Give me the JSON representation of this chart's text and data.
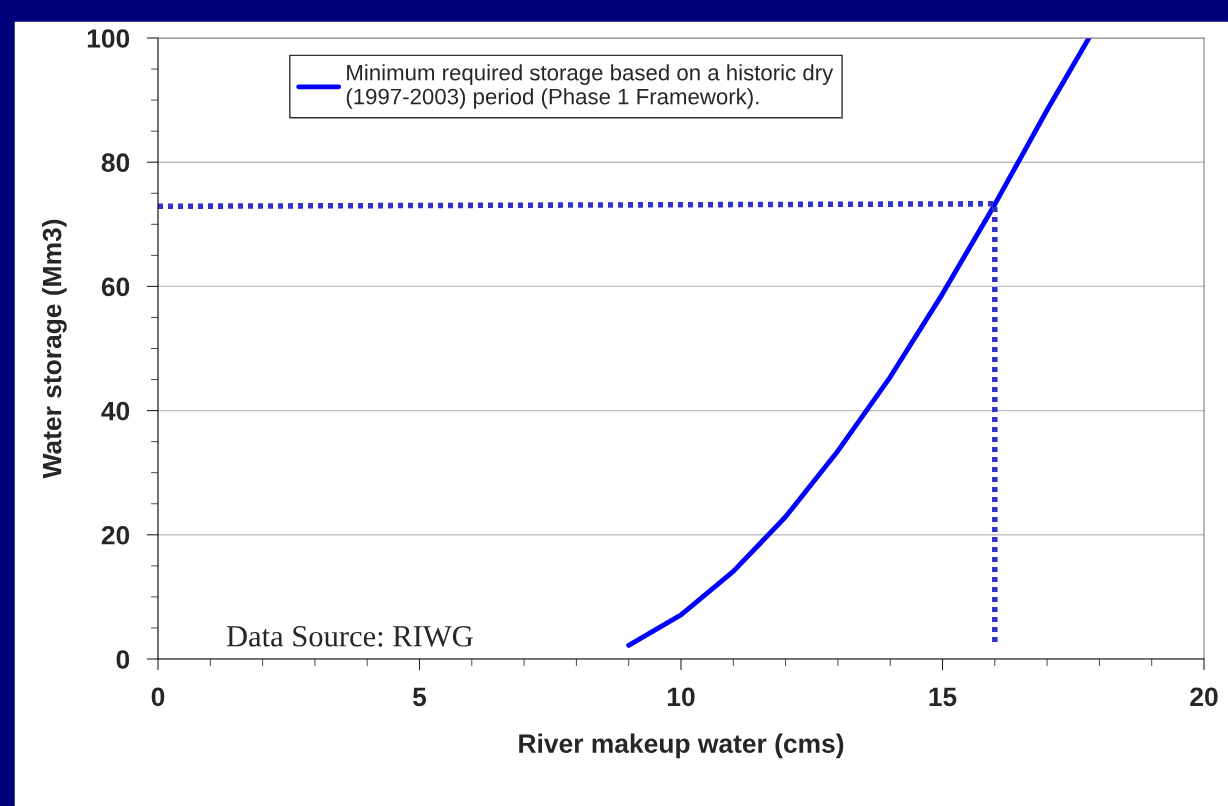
{
  "chart_data": {
    "type": "line",
    "xlabel": "River makeup water (cms)",
    "ylabel": "Water storage (Mm3)",
    "series": [
      {
        "name": "Minimum required storage based on a historic dry\n(1997-2003) period (Phase 1 Framework).",
        "color": "#0000ff",
        "x": [
          9,
          10,
          11,
          12,
          13,
          14,
          15,
          16,
          17,
          17.8
        ],
        "values": [
          2.2,
          7.1,
          14.1,
          22.9,
          33.5,
          45.4,
          58.8,
          73.2,
          88.4,
          100
        ]
      },
      {
        "color": "#3333cc",
        "line_style": "dotted",
        "x": [
          0,
          16,
          16
        ],
        "values": [
          72.9,
          73.3,
          2
        ]
      }
    ],
    "xlim": [
      0,
      20
    ],
    "xticks": [
      0,
      5,
      10,
      15,
      20
    ],
    "ylim": [
      0,
      100
    ],
    "yticks": [
      0,
      20,
      40,
      60,
      80,
      100
    ],
    "grid": "y",
    "legend": "top",
    "line_style": "solid",
    "annotations": [
      "Data Source: RIWG"
    ]
  }
}
